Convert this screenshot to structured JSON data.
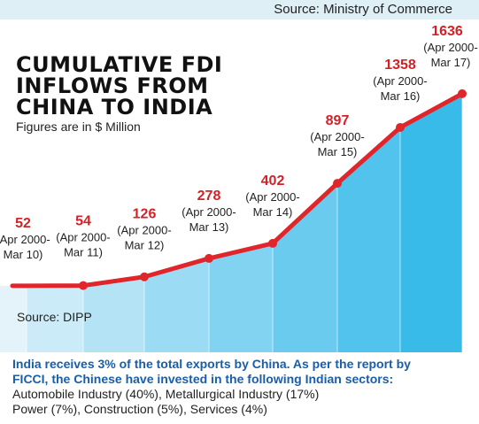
{
  "source_top": "Source: Ministry of Commerce",
  "title_lines": [
    "CUMULATIVE FDI",
    "INFLOWS FROM",
    "CHINA TO INDIA"
  ],
  "subtitle": "Figures are in $ Million",
  "source_bottom": "Source: DIPP",
  "footer": {
    "line1": "India receives 3% of the total exports by China. As per the report by",
    "line2": "FICCI, the Chinese have invested in the following Indian sectors:",
    "line3": "Automobile Industry (40%), Metallurgical Industry (17%)",
    "line4": "Power (7%), Construction (5%), Services (4%)"
  },
  "colors": {
    "line": "#e0262b",
    "value_label": "#d42026",
    "area_light": "#d8eef8",
    "area_dark": "#3fbde8"
  },
  "chart_data": {
    "type": "area",
    "title": "CUMULATIVE FDI INFLOWS FROM CHINA TO INDIA",
    "subtitle": "Figures are in $ Million",
    "categories": [
      [
        "(Apr 2000-",
        "Mar 10)"
      ],
      [
        "(Apr 2000-",
        "Mar 11)"
      ],
      [
        "(Apr 2000-",
        "Mar 12)"
      ],
      [
        "(Apr 2000-",
        "Mar 13)"
      ],
      [
        "(Apr 2000-",
        "Mar 14)"
      ],
      [
        "(Apr 2000-",
        "Mar 15)"
      ],
      [
        "(Apr 2000-",
        "Mar 16)"
      ],
      [
        "(Apr 2000-",
        "Mar 17)"
      ]
    ],
    "values": [
      52,
      54,
      126,
      278,
      402,
      897,
      1358,
      1636
    ],
    "value_labels": [
      "52",
      "54",
      "126",
      "278",
      "402",
      "897",
      "1358",
      "1636"
    ]
  }
}
